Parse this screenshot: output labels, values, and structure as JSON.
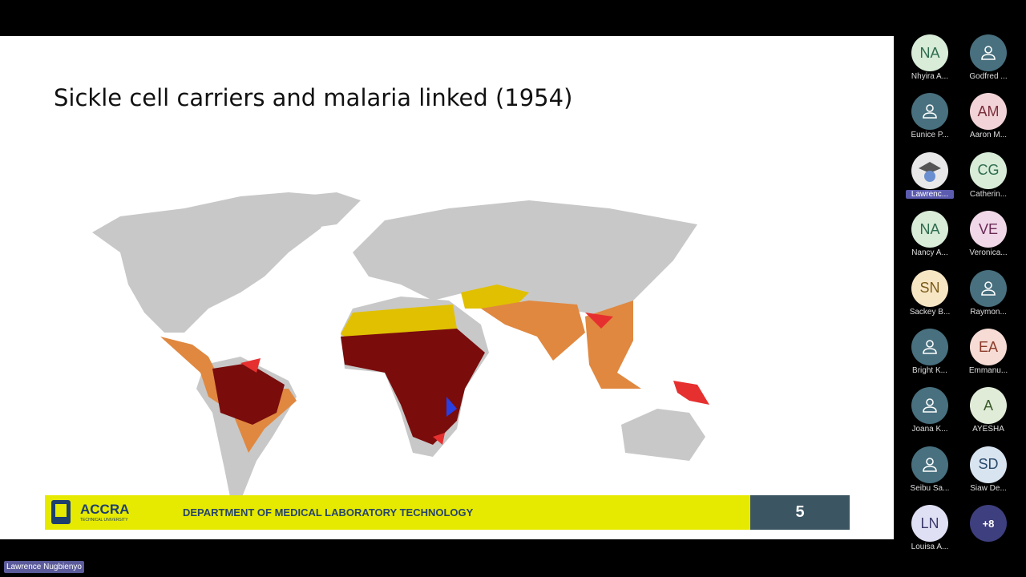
{
  "slide": {
    "title": "Sickle cell carriers and malaria linked (1954)",
    "logo": {
      "name": "ACCRA",
      "subtitle": "TECHNICAL UNIVERSITY"
    },
    "footer": "DEPARTMENT OF MEDICAL LABORATORY TECHNOLOGY",
    "page_number": 5
  },
  "participants": [
    {
      "initials": "NA",
      "name": "Nhyira A..."
    },
    {
      "name": "Godfred ..."
    },
    {
      "name": "Eunice P..."
    },
    {
      "initials": "AM",
      "name": "Aaron M..."
    },
    {
      "name": "Lawrenc..."
    },
    {
      "initials": "CG",
      "name": "Catherin..."
    },
    {
      "initials": "NA",
      "name": "Nancy A..."
    },
    {
      "initials": "VE",
      "name": "Veronica..."
    },
    {
      "initials": "SN",
      "name": "Sackey B..."
    },
    {
      "name": "Raymon..."
    },
    {
      "name": "Bright K..."
    },
    {
      "initials": "EA",
      "name": "Emmanu..."
    },
    {
      "name": "Joana K..."
    },
    {
      "initials": "A",
      "name": "AYESHA"
    },
    {
      "name": "Seibu Sa..."
    },
    {
      "initials": "SD",
      "name": "Siaw De..."
    },
    {
      "initials": "LN",
      "name": "Louisa A..."
    }
  ],
  "more": "+8",
  "speaker": "Lawrence Nugbienyo"
}
